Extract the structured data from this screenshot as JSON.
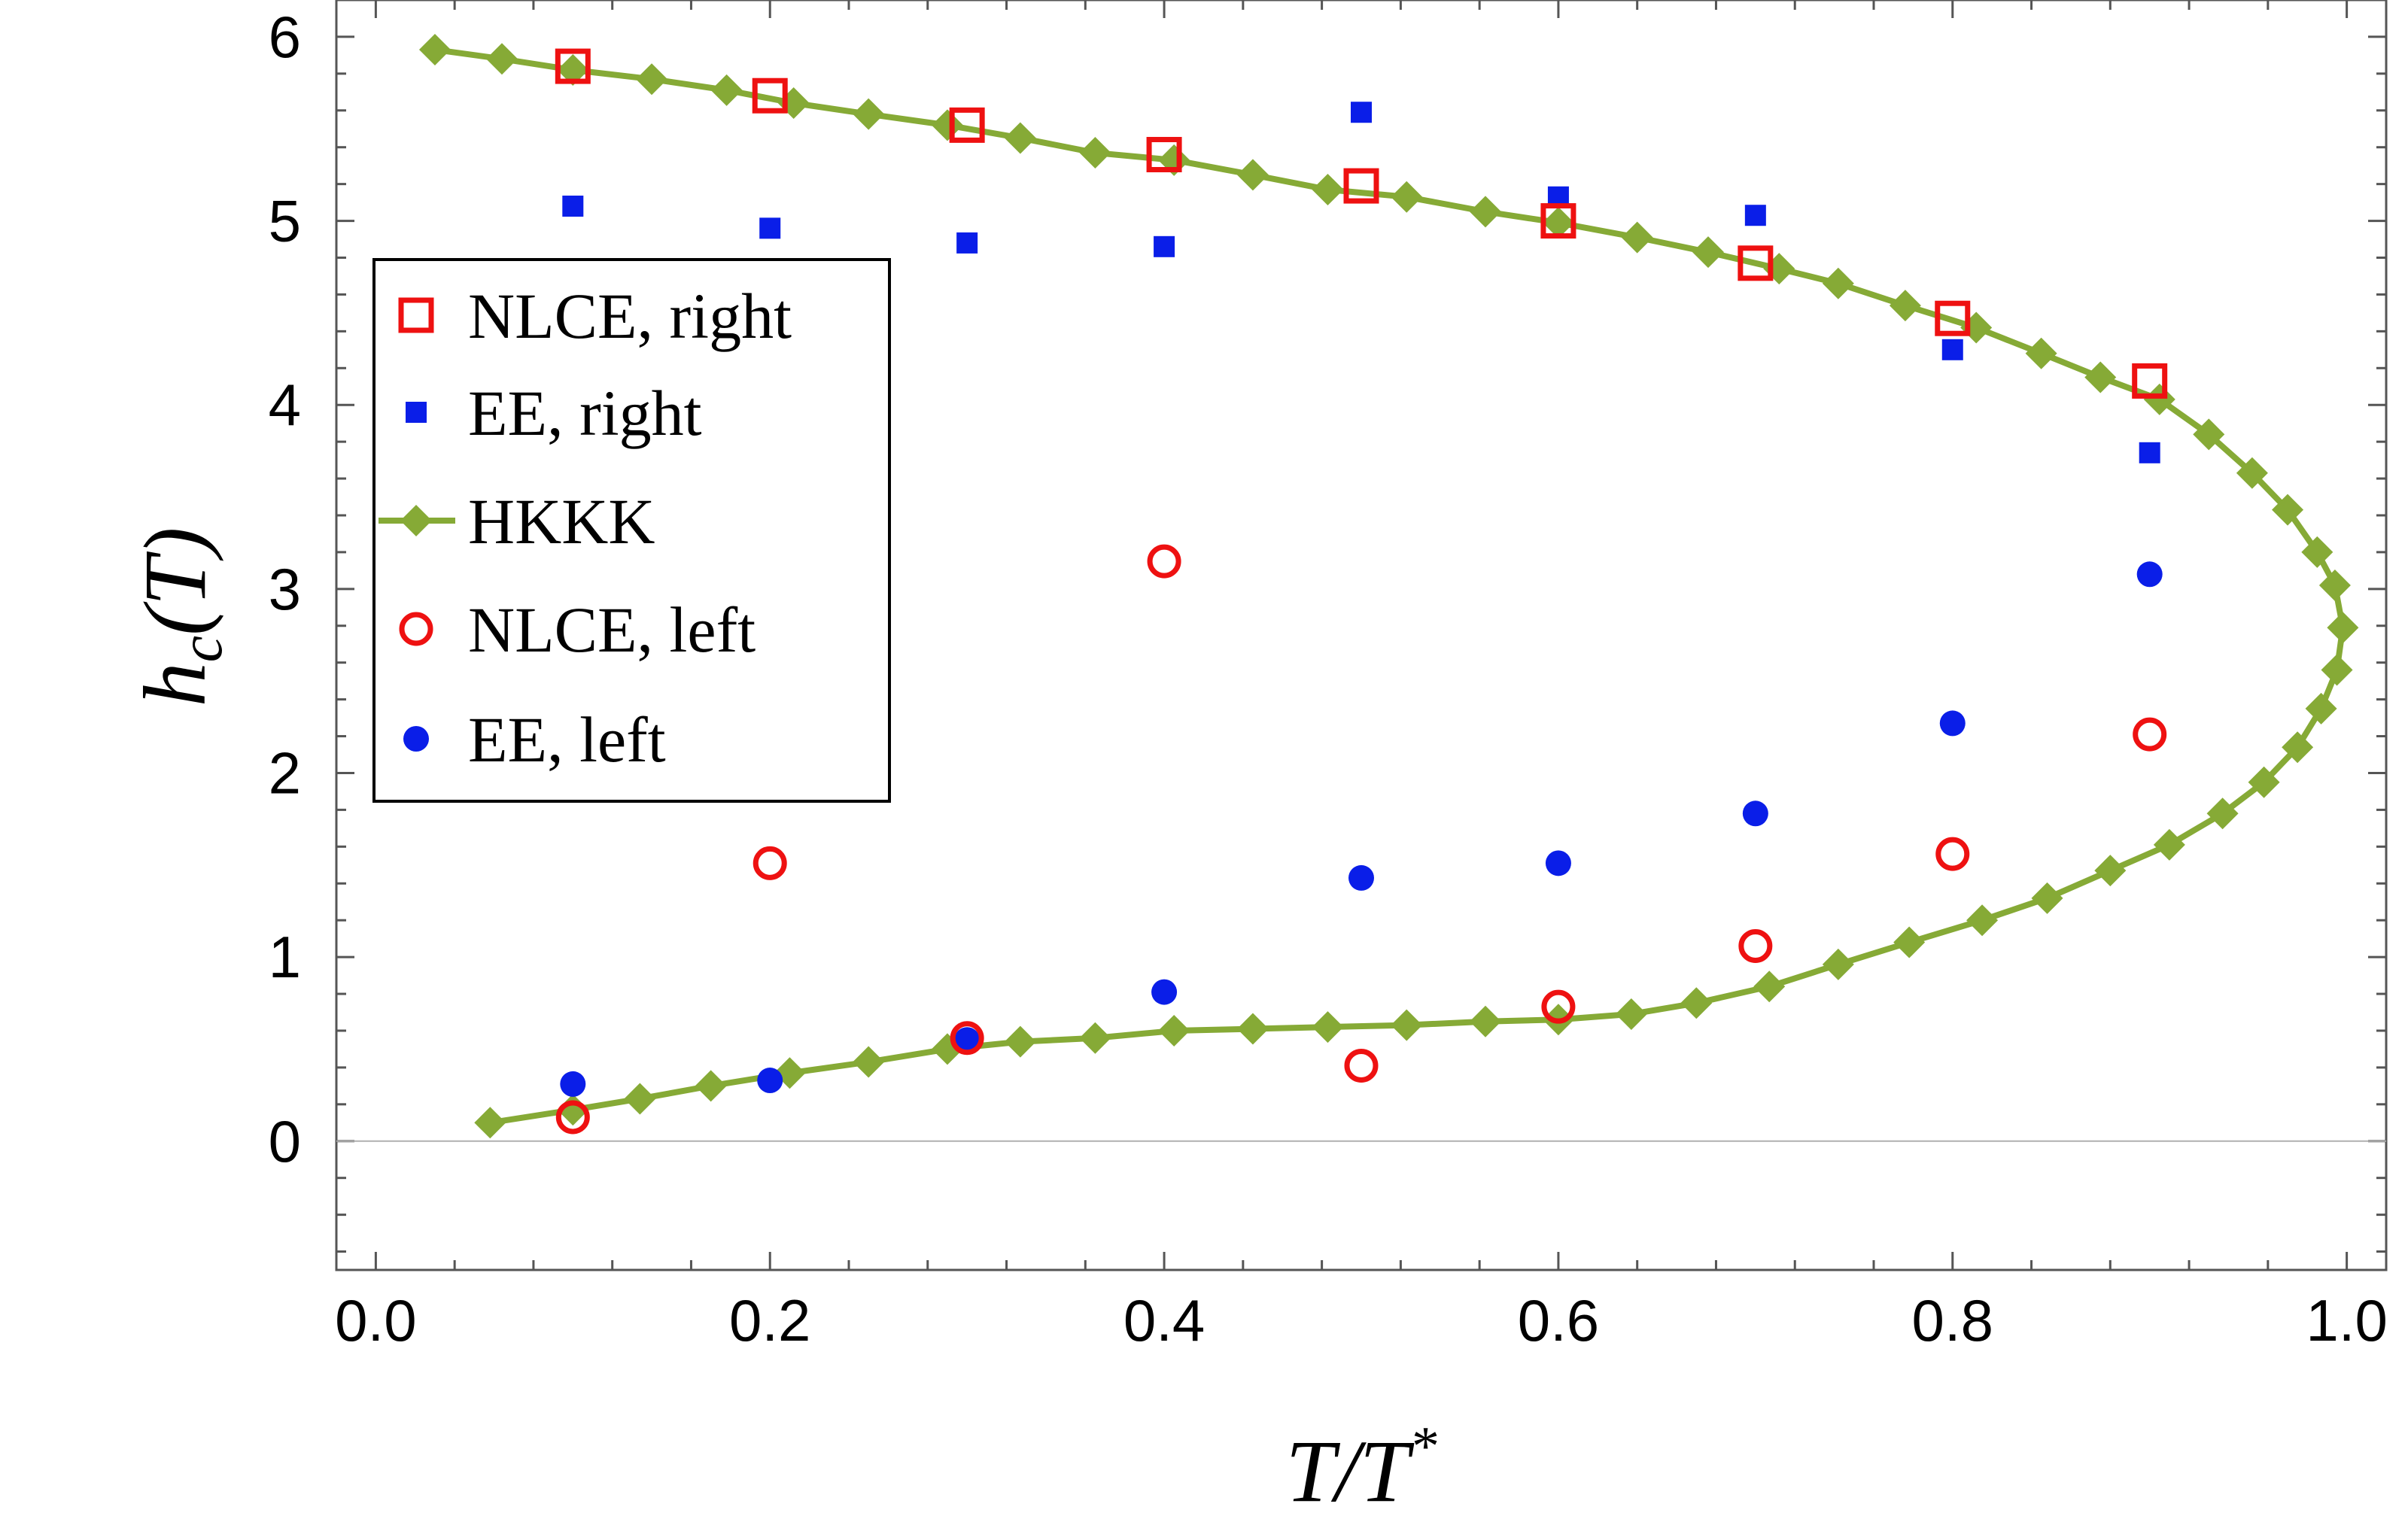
{
  "chart_data": {
    "type": "scatter",
    "xlabel": "T/T*",
    "ylabel": "h_c(T)",
    "xlim": [
      -0.02,
      1.02
    ],
    "ylim": [
      -0.7,
      6.2
    ],
    "xticks": [
      0.0,
      0.2,
      0.4,
      0.6,
      0.8,
      1.0
    ],
    "xtick_labels": [
      "0.0",
      "0.2",
      "0.4",
      "0.6",
      "0.8",
      "1.0"
    ],
    "yticks": [
      0,
      1,
      2,
      3,
      4,
      5,
      6
    ],
    "ytick_labels": [
      "0",
      "1",
      "2",
      "3",
      "4",
      "5",
      "6"
    ],
    "grid": false,
    "legend_position": "left",
    "series": [
      {
        "name": "NLCE, right",
        "marker": "open-square",
        "color": "#ee1111",
        "x": [
          0.1,
          0.2,
          0.3,
          0.4,
          0.5,
          0.6,
          0.7,
          0.8,
          0.9
        ],
        "y": [
          5.84,
          5.68,
          5.52,
          5.36,
          5.19,
          5.0,
          4.77,
          4.47,
          4.13
        ]
      },
      {
        "name": "EE, right",
        "marker": "filled-square",
        "color": "#0a1ee8",
        "x": [
          0.1,
          0.2,
          0.3,
          0.4,
          0.5,
          0.6,
          0.7,
          0.8,
          0.9
        ],
        "y": [
          5.08,
          4.96,
          4.88,
          4.86,
          5.59,
          5.13,
          5.03,
          4.3,
          3.74
        ]
      },
      {
        "name": "HKKK",
        "marker": "diamond-line",
        "color": "#86aa36",
        "x": [
          0.03,
          0.064,
          0.1,
          0.14,
          0.178,
          0.212,
          0.25,
          0.29,
          0.327,
          0.365,
          0.405,
          0.445,
          0.483,
          0.523,
          0.563,
          0.6,
          0.64,
          0.676,
          0.712,
          0.742,
          0.776,
          0.812,
          0.845,
          0.875,
          0.905,
          0.93,
          0.952,
          0.97,
          0.985,
          0.994,
          0.998,
          0.995,
          0.987,
          0.975,
          0.958,
          0.937,
          0.91,
          0.88,
          0.848,
          0.815,
          0.778,
          0.742,
          0.707,
          0.67,
          0.637,
          0.6,
          0.563,
          0.523,
          0.483,
          0.445,
          0.405,
          0.365,
          0.327,
          0.29,
          0.25,
          0.21,
          0.17,
          0.134,
          0.1,
          0.058
        ],
        "y": [
          5.93,
          5.88,
          5.82,
          5.77,
          5.71,
          5.64,
          5.58,
          5.52,
          5.45,
          5.37,
          5.33,
          5.25,
          5.17,
          5.13,
          5.05,
          4.99,
          4.91,
          4.83,
          4.74,
          4.66,
          4.54,
          4.42,
          4.28,
          4.15,
          4.03,
          3.84,
          3.63,
          3.43,
          3.2,
          3.02,
          2.79,
          2.56,
          2.35,
          2.14,
          1.95,
          1.78,
          1.61,
          1.47,
          1.32,
          1.2,
          1.08,
          0.96,
          0.84,
          0.75,
          0.69,
          0.66,
          0.65,
          0.63,
          0.62,
          0.61,
          0.6,
          0.56,
          0.54,
          0.5,
          0.43,
          0.37,
          0.3,
          0.23,
          0.17,
          0.1
        ]
      },
      {
        "name": "NLCE, left",
        "marker": "open-circle",
        "color": "#ee1111",
        "x": [
          0.1,
          0.2,
          0.3,
          0.4,
          0.5,
          0.6,
          0.7,
          0.8,
          0.9
        ],
        "y": [
          0.13,
          1.51,
          0.56,
          3.15,
          0.41,
          0.73,
          1.06,
          1.56,
          2.21
        ]
      },
      {
        "name": "EE, left",
        "marker": "filled-circle",
        "color": "#0a1ee8",
        "x": [
          0.1,
          0.2,
          0.3,
          0.4,
          0.5,
          0.6,
          0.7,
          0.8,
          0.9
        ],
        "y": [
          0.31,
          0.33,
          0.55,
          0.81,
          1.43,
          1.51,
          1.78,
          2.27,
          3.08
        ]
      }
    ]
  }
}
